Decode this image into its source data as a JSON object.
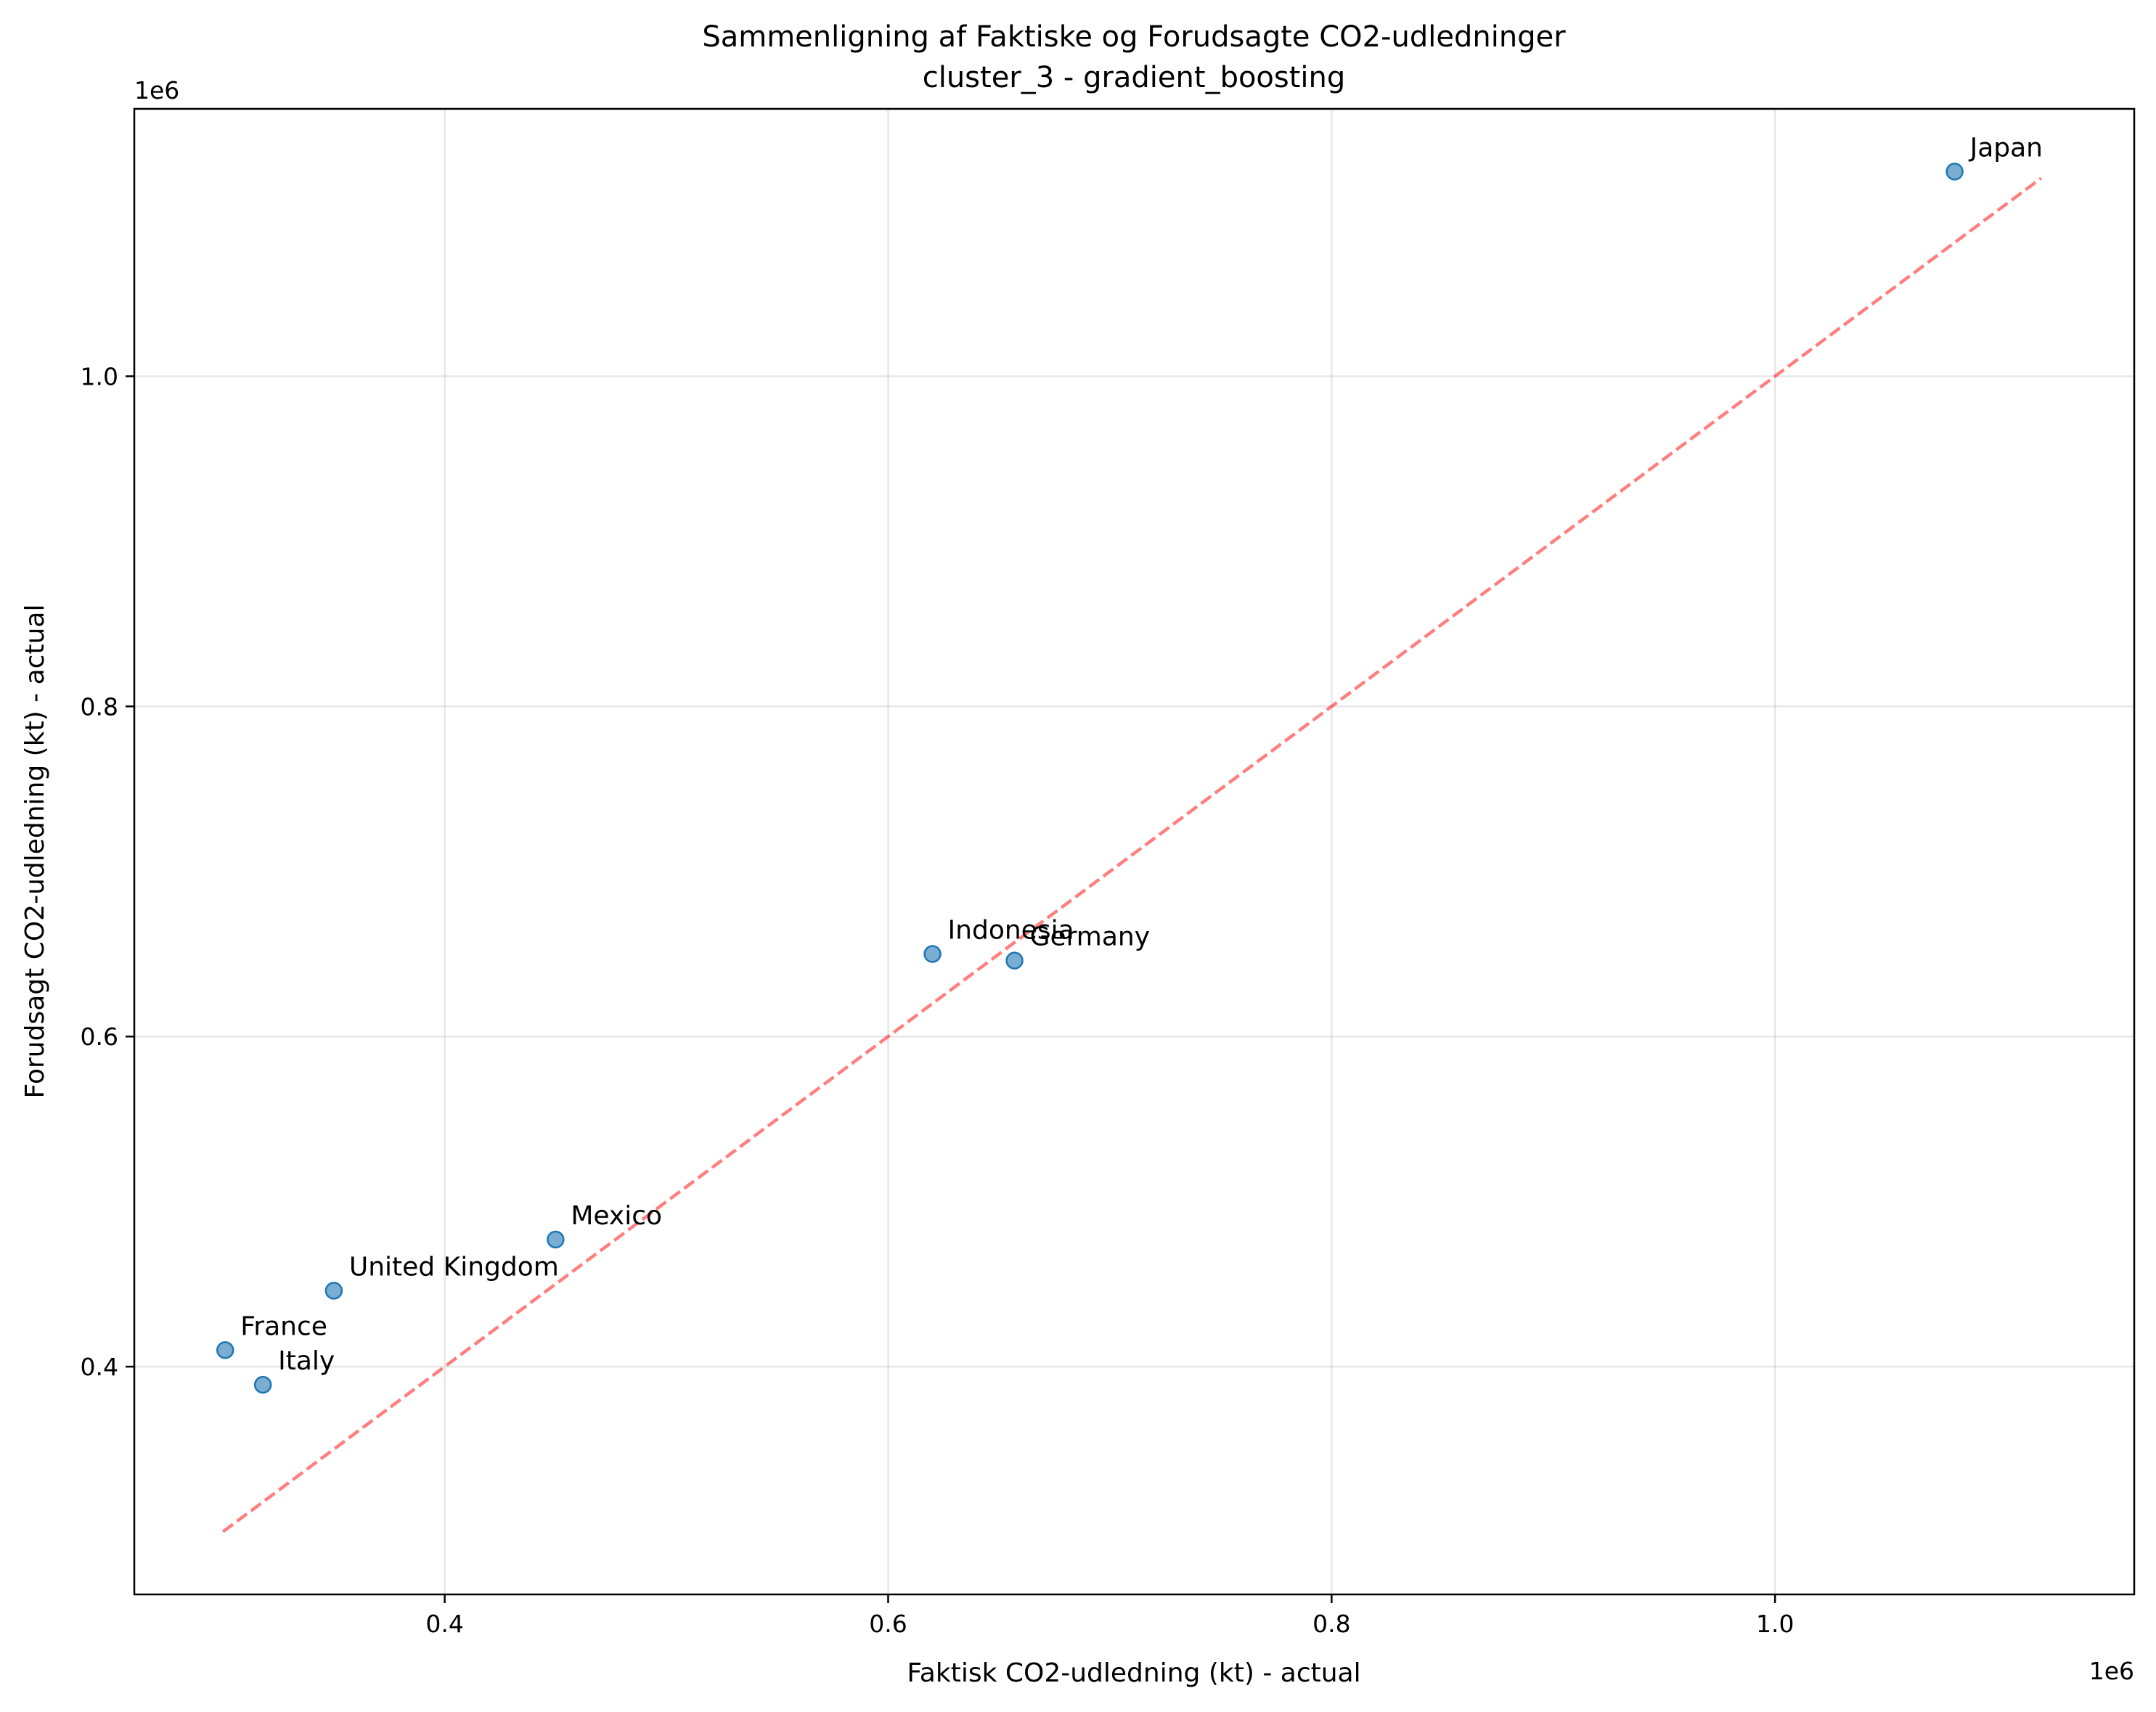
{
  "chart_data": {
    "type": "scatter",
    "title_line1": "Sammenligning af Faktiske og Forudsagte CO2-udledninger",
    "title_line2": "cluster_3 - gradient_boosting",
    "xlabel": "Faktisk CO2-udledning (kt) - actual",
    "ylabel": "Forudsagt CO2-udledning (kt) - actual",
    "x_offset_label": "1e6",
    "y_offset_label": "1e6",
    "xlim": [
      260000,
      1162000
    ],
    "ylim": [
      262000,
      1162000
    ],
    "x_ticks": [
      0.4,
      0.6,
      0.8,
      1.0
    ],
    "y_ticks": [
      0.4,
      0.6,
      0.8,
      1.0
    ],
    "x_tick_labels": [
      "0.4",
      "0.6",
      "0.8",
      "1.0"
    ],
    "y_tick_labels": [
      "0.4",
      "0.6",
      "0.8",
      "1.0"
    ],
    "grid": true,
    "marker_color": "#1f77b4",
    "reference_line": {
      "style": "dashed",
      "color": "#ff0000",
      "from": [
        300000,
        300000
      ],
      "to": [
        1120000,
        1120000
      ]
    },
    "points": [
      {
        "label": "Japan",
        "x": 1081000,
        "y": 1124000
      },
      {
        "label": "Indonesia",
        "x": 620000,
        "y": 650000
      },
      {
        "label": "Germany",
        "x": 657000,
        "y": 646000
      },
      {
        "label": "Mexico",
        "x": 450000,
        "y": 477000
      },
      {
        "label": "United Kingdom",
        "x": 350000,
        "y": 446000
      },
      {
        "label": "France",
        "x": 301000,
        "y": 410000
      },
      {
        "label": "Italy",
        "x": 318000,
        "y": 389000
      }
    ]
  }
}
